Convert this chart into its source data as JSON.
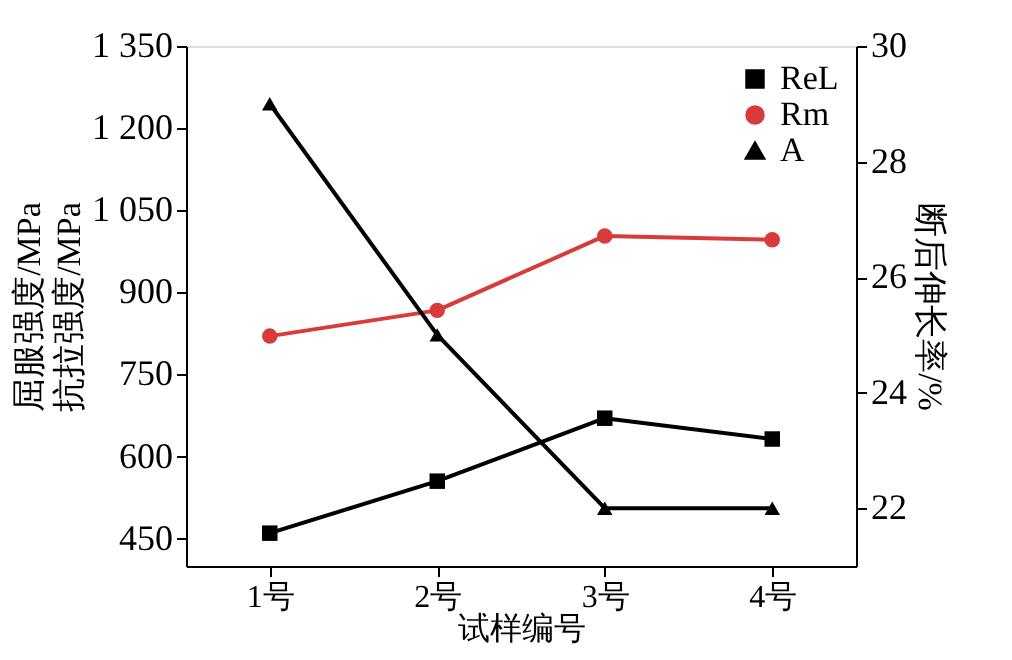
{
  "chart_data": {
    "type": "line",
    "xlabel": "试样编号",
    "ylabel": "屈服强度/MPa\n抗拉强度/MPa",
    "y2label": "断后伸长率/%",
    "categories": [
      "1号",
      "2号",
      "3号",
      "4号"
    ],
    "series": [
      {
        "name": "ReL",
        "color": "#000000",
        "marker": "square",
        "values": [
          460,
          555,
          670,
          632
        ]
      },
      {
        "name": "Rm",
        "color": "#d93a3a",
        "marker": "circle",
        "values": [
          820,
          867,
          1003,
          996
        ]
      },
      {
        "name": "A",
        "color": "#000000",
        "marker": "triangle",
        "axis": "y2",
        "values": [
          29.0,
          25.0,
          22.0,
          22.0
        ]
      }
    ],
    "ylim": [
      400,
      1350
    ],
    "yticks": [
      450,
      600,
      750,
      900,
      {
        "value": 1050,
        "label": "1 050"
      },
      {
        "value": 1200,
        "label": "1 200"
      },
      {
        "value": 1350,
        "label": "1 350"
      }
    ],
    "y2lim": [
      21,
      30
    ],
    "y2ticks": [
      22,
      24,
      26,
      28,
      30
    ],
    "grid": false,
    "legend": "top right",
    "line_style": "solid"
  }
}
